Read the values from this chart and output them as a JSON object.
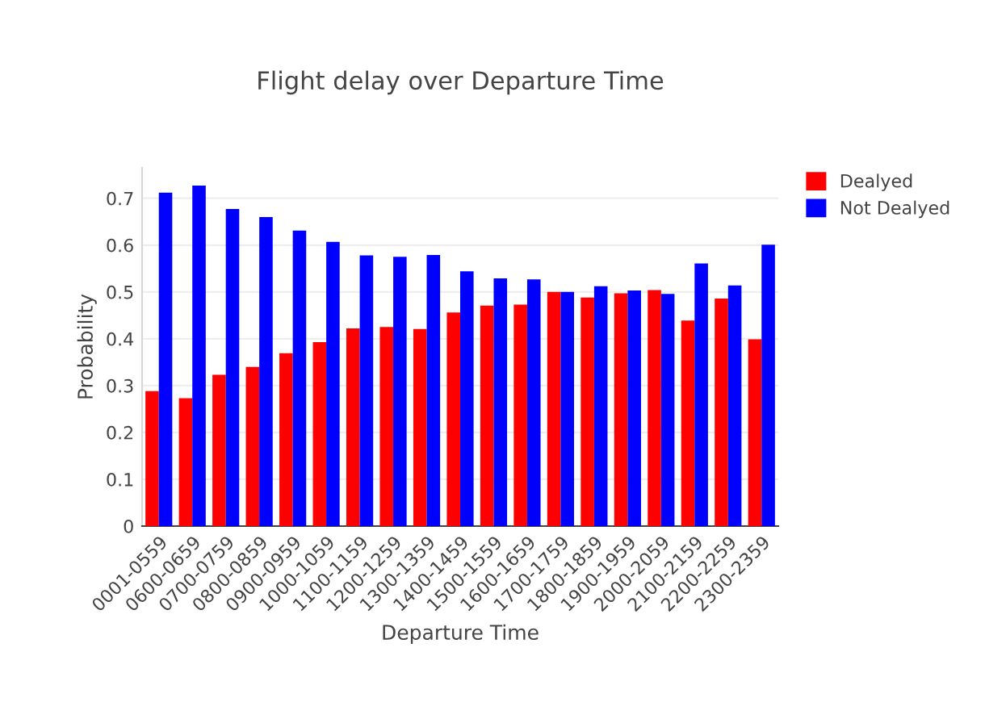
{
  "chart_data": {
    "type": "bar",
    "title": "Flight delay over Departure Time",
    "xlabel": "Departure Time",
    "ylabel": "Probability",
    "categories": [
      "0001-0559",
      "0600-0659",
      "0700-0759",
      "0800-0859",
      "0900-0959",
      "1000-1059",
      "1100-1159",
      "1200-1259",
      "1300-1359",
      "1400-1459",
      "1500-1559",
      "1600-1659",
      "1700-1759",
      "1800-1859",
      "1900-1959",
      "2000-2059",
      "2100-2159",
      "2200-2259",
      "2300-2359"
    ],
    "series": [
      {
        "name": "Dealyed",
        "color": "#ff0000",
        "values": [
          0.288,
          0.273,
          0.323,
          0.34,
          0.369,
          0.393,
          0.422,
          0.425,
          0.421,
          0.456,
          0.471,
          0.473,
          0.5,
          0.488,
          0.497,
          0.504,
          0.439,
          0.486,
          0.399
        ]
      },
      {
        "name": "Not Dealyed",
        "color": "#0000ff",
        "values": [
          0.712,
          0.727,
          0.677,
          0.66,
          0.631,
          0.607,
          0.578,
          0.575,
          0.579,
          0.544,
          0.529,
          0.527,
          0.5,
          0.512,
          0.503,
          0.496,
          0.561,
          0.514,
          0.601
        ]
      }
    ],
    "ylim": [
      0,
      0.765
    ],
    "yticks": [
      0,
      0.1,
      0.2,
      0.3,
      0.4,
      0.5,
      0.6,
      0.7
    ],
    "grid": "y",
    "legend": "top right"
  }
}
